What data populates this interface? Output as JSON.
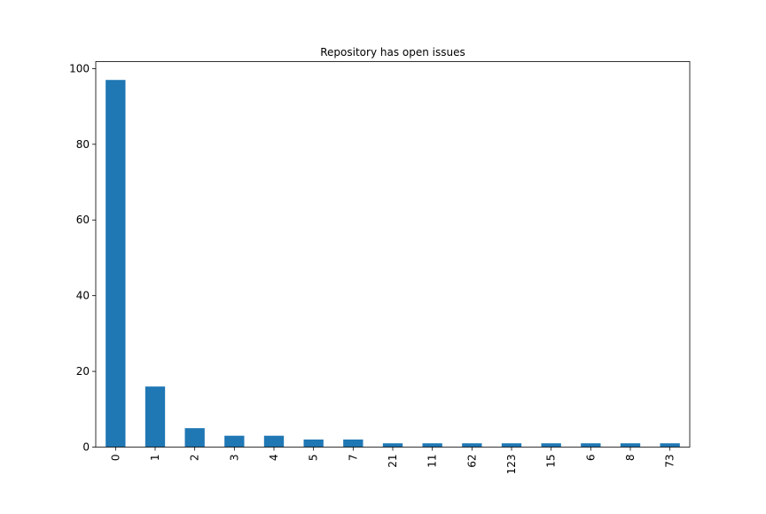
{
  "chart_data": {
    "type": "bar",
    "title": "Repository has open issues",
    "xlabel": "",
    "ylabel": "",
    "categories": [
      "0",
      "1",
      "2",
      "3",
      "4",
      "5",
      "7",
      "21",
      "11",
      "62",
      "123",
      "15",
      "6",
      "8",
      "73"
    ],
    "values": [
      97,
      16,
      5,
      3,
      3,
      2,
      2,
      1,
      1,
      1,
      1,
      1,
      1,
      1,
      1
    ],
    "ylim": [
      0,
      101.85
    ],
    "yticks": [
      0,
      20,
      40,
      60,
      80,
      100
    ],
    "grid": false,
    "legend": "none",
    "bar_color": "#1f77b4"
  }
}
